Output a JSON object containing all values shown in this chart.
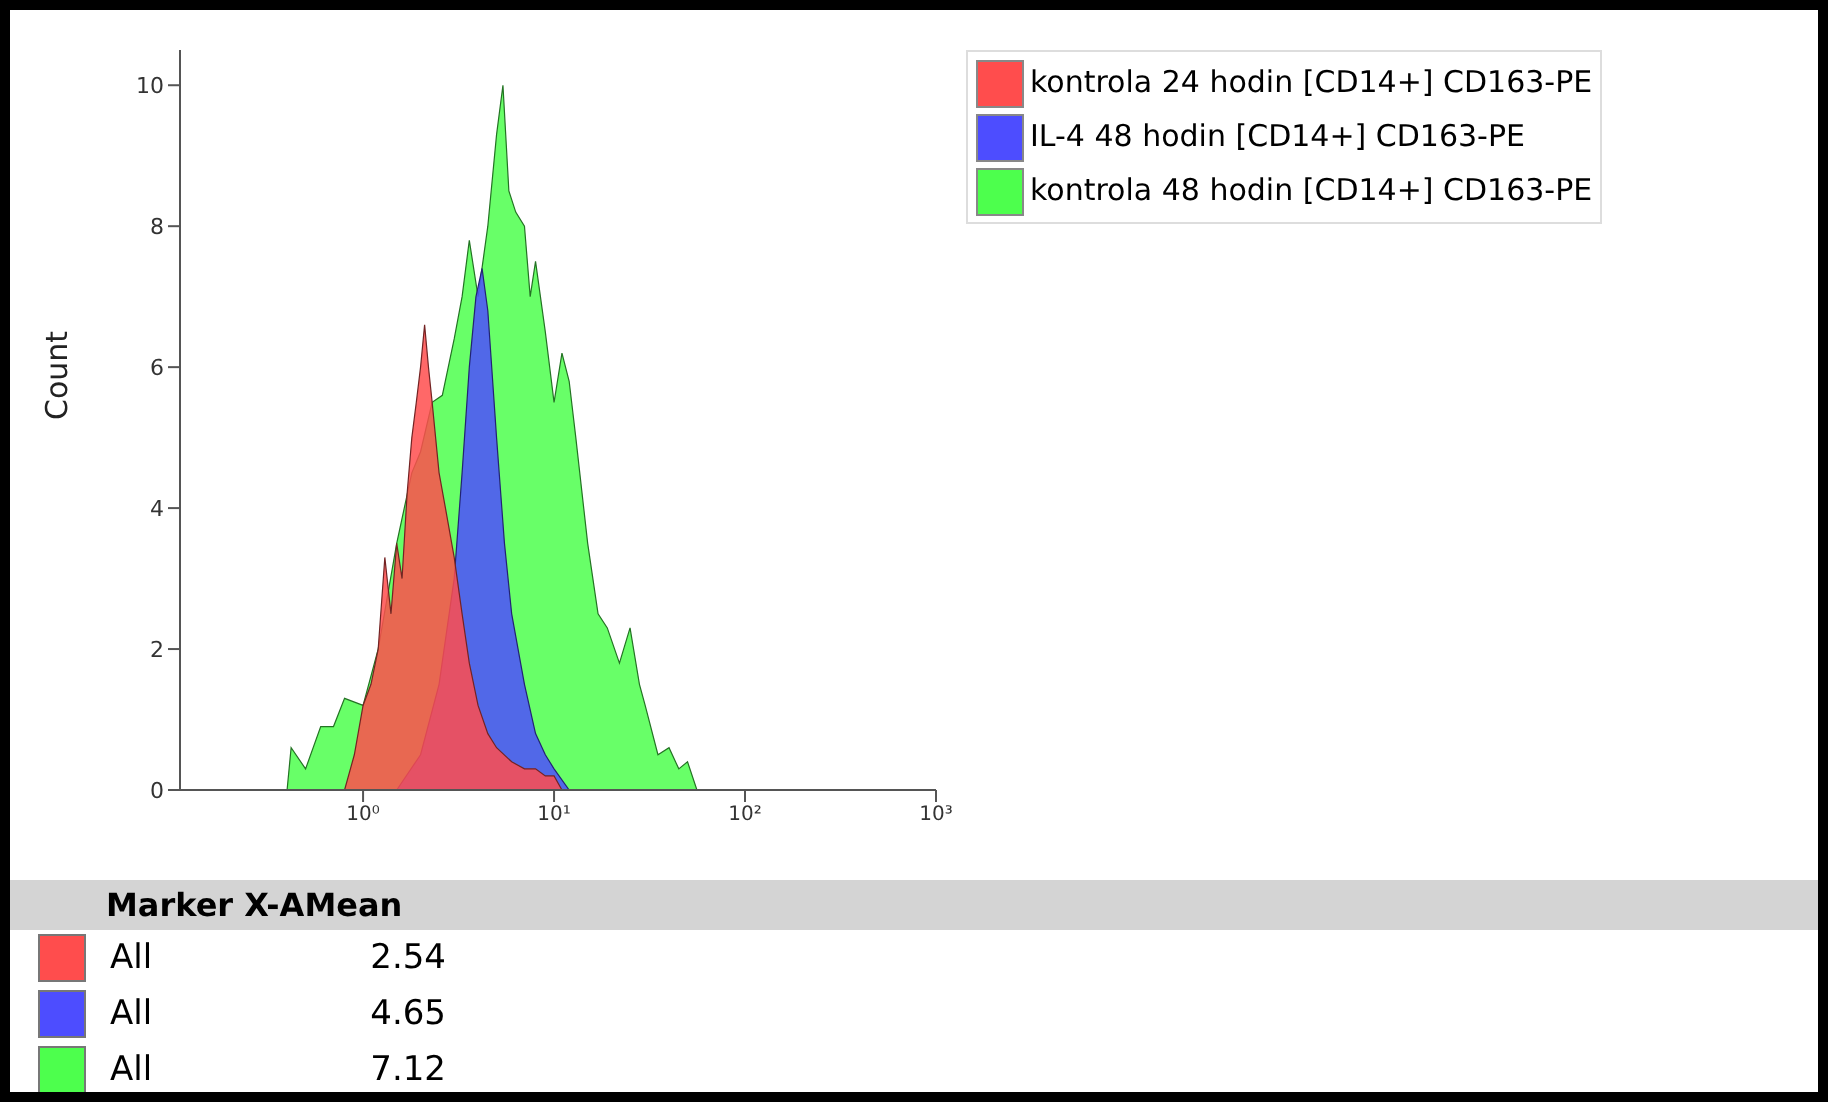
{
  "chart_data": {
    "type": "area",
    "ylabel": "Count",
    "log": "x",
    "xlim": [
      0.11,
      1000
    ],
    "xticks": [
      {
        "value": 1,
        "label": "10⁰"
      },
      {
        "value": 10,
        "label": "10¹"
      },
      {
        "value": 100,
        "label": "10²"
      },
      {
        "value": 1000,
        "label": "10³"
      }
    ],
    "ylim": [
      0,
      10.5
    ],
    "yticks": [
      0,
      2,
      4,
      6,
      8,
      10
    ],
    "legend": "top right",
    "grid": false,
    "series": [
      {
        "name": "kontrola 24 hodin [CD14+] CD163-PE",
        "color": "#ff4d4d",
        "x": [
          0.8,
          0.9,
          1.0,
          1.1,
          1.2,
          1.3,
          1.4,
          1.5,
          1.6,
          1.7,
          1.8,
          1.9,
          2.0,
          2.1,
          2.2,
          2.3,
          2.5,
          2.7,
          3.0,
          3.3,
          3.6,
          4.0,
          4.5,
          5,
          6,
          7,
          8,
          9,
          10,
          11
        ],
        "values": [
          0,
          0.5,
          1.2,
          1.5,
          2.0,
          3.3,
          2.5,
          3.5,
          3.0,
          4.2,
          5.0,
          5.5,
          6.0,
          6.6,
          6.0,
          5.5,
          4.5,
          4.0,
          3.3,
          2.5,
          1.8,
          1.2,
          0.8,
          0.6,
          0.4,
          0.3,
          0.3,
          0.2,
          0.2,
          0
        ]
      },
      {
        "name": "IL-4 48 hodin [CD14+] CD163-PE",
        "color": "#4d4dff",
        "x": [
          1.5,
          2,
          2.5,
          3,
          3.3,
          3.6,
          3.9,
          4.2,
          4.5,
          5,
          5.5,
          6,
          7,
          8,
          9,
          10,
          12
        ],
        "values": [
          0,
          0.5,
          1.5,
          3.0,
          4.5,
          6.0,
          7.0,
          7.4,
          6.8,
          5.0,
          3.5,
          2.5,
          1.5,
          0.8,
          0.5,
          0.3,
          0
        ]
      },
      {
        "name": "kontrola 48 hodin [CD14+] CD163-PE",
        "color": "#4dff4d",
        "x": [
          0.4,
          0.42,
          0.5,
          0.6,
          0.7,
          0.8,
          1.0,
          1.2,
          1.5,
          1.8,
          2.0,
          2.3,
          2.6,
          3.0,
          3.3,
          3.6,
          4.0,
          4.5,
          5.0,
          5.4,
          5.8,
          6.3,
          7.0,
          7.5,
          8,
          9,
          10,
          11,
          12,
          13,
          15,
          17,
          19,
          22,
          25,
          28,
          30,
          35,
          40,
          45,
          50,
          56
        ],
        "values": [
          0,
          0.6,
          0.3,
          0.9,
          0.9,
          1.3,
          1.2,
          2.0,
          3.5,
          4.5,
          4.8,
          5.5,
          5.6,
          6.4,
          7.0,
          7.8,
          7.0,
          8.0,
          9.3,
          10,
          8.5,
          8.2,
          8.0,
          7.0,
          7.5,
          6.5,
          5.5,
          6.2,
          5.8,
          5.0,
          3.5,
          2.5,
          2.3,
          1.8,
          2.3,
          1.5,
          1.2,
          0.5,
          0.6,
          0.3,
          0.4,
          0
        ]
      }
    ],
    "annotations": [
      "Marker X-AMean",
      "All",
      "2.54",
      "All",
      "4.65",
      "All",
      "7.12"
    ]
  }
}
